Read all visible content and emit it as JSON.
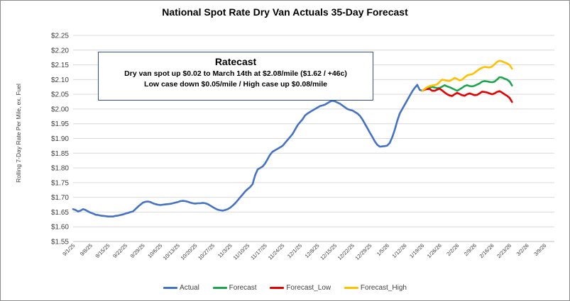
{
  "chart_data": {
    "type": "line",
    "title": "National Spot Rate Dry Van Actuals 35-Day Forecast",
    "ylabel": "Rolling 7-Day Rate Per Mile, ex. Fuel",
    "xlabel": "",
    "ylim": [
      1.55,
      2.25
    ],
    "yticks": [
      "$1.55",
      "$1.60",
      "$1.65",
      "$1.70",
      "$1.75",
      "$1.80",
      "$1.85",
      "$1.90",
      "$1.95",
      "$2.00",
      "$2.05",
      "$2.10",
      "$2.15",
      "$2.20",
      "$2.25"
    ],
    "yvalues": [
      1.55,
      1.6,
      1.65,
      1.7,
      1.75,
      1.8,
      1.85,
      1.9,
      1.95,
      2.0,
      2.05,
      2.1,
      2.15,
      2.2,
      2.25
    ],
    "xdomain": [
      0,
      193
    ],
    "xticks": [
      {
        "label": "9/1/25",
        "day": 0
      },
      {
        "label": "9/8/25",
        "day": 7
      },
      {
        "label": "9/15/25",
        "day": 14
      },
      {
        "label": "9/22/25",
        "day": 21
      },
      {
        "label": "9/29/25",
        "day": 28
      },
      {
        "label": "10/6/25",
        "day": 35
      },
      {
        "label": "10/13/25",
        "day": 42
      },
      {
        "label": "10/20/25",
        "day": 49
      },
      {
        "label": "10/27/25",
        "day": 56
      },
      {
        "label": "11/3/25",
        "day": 63
      },
      {
        "label": "11/10/25",
        "day": 70
      },
      {
        "label": "11/17/25",
        "day": 77
      },
      {
        "label": "11/24/25",
        "day": 84
      },
      {
        "label": "12/1/25",
        "day": 91
      },
      {
        "label": "12/8/25",
        "day": 98
      },
      {
        "label": "12/15/25",
        "day": 105
      },
      {
        "label": "12/22/25",
        "day": 112
      },
      {
        "label": "12/29/25",
        "day": 119
      },
      {
        "label": "1/5/26",
        "day": 126
      },
      {
        "label": "1/12/26",
        "day": 133
      },
      {
        "label": "1/19/26",
        "day": 140
      },
      {
        "label": "1/26/26",
        "day": 147
      },
      {
        "label": "2/2/26",
        "day": 154
      },
      {
        "label": "2/9/26",
        "day": 161
      },
      {
        "label": "2/16/26",
        "day": 168
      },
      {
        "label": "2/23/26",
        "day": 175
      },
      {
        "label": "3/2/26",
        "day": 182
      },
      {
        "label": "3/9/26",
        "day": 189
      }
    ],
    "series": [
      {
        "name": "Actual",
        "color": "#4472c4",
        "points": [
          [
            0,
            1.66
          ],
          [
            1,
            1.657
          ],
          [
            2,
            1.652
          ],
          [
            3,
            1.655
          ],
          [
            4,
            1.66
          ],
          [
            5,
            1.657
          ],
          [
            6,
            1.652
          ],
          [
            7,
            1.648
          ],
          [
            8,
            1.645
          ],
          [
            9,
            1.641
          ],
          [
            10,
            1.64
          ],
          [
            11,
            1.638
          ],
          [
            12,
            1.637
          ],
          [
            13,
            1.636
          ],
          [
            14,
            1.635
          ],
          [
            15,
            1.635
          ],
          [
            16,
            1.635
          ],
          [
            17,
            1.637
          ],
          [
            18,
            1.638
          ],
          [
            19,
            1.64
          ],
          [
            20,
            1.642
          ],
          [
            21,
            1.645
          ],
          [
            22,
            1.647
          ],
          [
            23,
            1.65
          ],
          [
            24,
            1.652
          ],
          [
            25,
            1.66
          ],
          [
            26,
            1.668
          ],
          [
            27,
            1.675
          ],
          [
            28,
            1.682
          ],
          [
            29,
            1.685
          ],
          [
            30,
            1.686
          ],
          [
            31,
            1.684
          ],
          [
            32,
            1.68
          ],
          [
            33,
            1.677
          ],
          [
            34,
            1.675
          ],
          [
            35,
            1.674
          ],
          [
            36,
            1.675
          ],
          [
            37,
            1.676
          ],
          [
            38,
            1.677
          ],
          [
            39,
            1.678
          ],
          [
            40,
            1.68
          ],
          [
            41,
            1.682
          ],
          [
            42,
            1.684
          ],
          [
            43,
            1.687
          ],
          [
            44,
            1.688
          ],
          [
            45,
            1.687
          ],
          [
            46,
            1.685
          ],
          [
            47,
            1.682
          ],
          [
            48,
            1.68
          ],
          [
            49,
            1.679
          ],
          [
            50,
            1.68
          ],
          [
            51,
            1.68
          ],
          [
            52,
            1.681
          ],
          [
            53,
            1.68
          ],
          [
            54,
            1.677
          ],
          [
            55,
            1.672
          ],
          [
            56,
            1.667
          ],
          [
            57,
            1.662
          ],
          [
            58,
            1.658
          ],
          [
            59,
            1.656
          ],
          [
            60,
            1.655
          ],
          [
            61,
            1.657
          ],
          [
            62,
            1.66
          ],
          [
            63,
            1.665
          ],
          [
            64,
            1.672
          ],
          [
            65,
            1.68
          ],
          [
            66,
            1.69
          ],
          [
            67,
            1.7
          ],
          [
            68,
            1.71
          ],
          [
            69,
            1.72
          ],
          [
            70,
            1.728
          ],
          [
            71,
            1.735
          ],
          [
            72,
            1.745
          ],
          [
            73,
            1.775
          ],
          [
            74,
            1.795
          ],
          [
            75,
            1.8
          ],
          [
            76,
            1.805
          ],
          [
            77,
            1.815
          ],
          [
            78,
            1.83
          ],
          [
            79,
            1.845
          ],
          [
            80,
            1.855
          ],
          [
            81,
            1.86
          ],
          [
            82,
            1.865
          ],
          [
            83,
            1.87
          ],
          [
            84,
            1.875
          ],
          [
            85,
            1.885
          ],
          [
            86,
            1.895
          ],
          [
            87,
            1.905
          ],
          [
            88,
            1.915
          ],
          [
            89,
            1.93
          ],
          [
            90,
            1.945
          ],
          [
            91,
            1.955
          ],
          [
            92,
            1.965
          ],
          [
            93,
            1.978
          ],
          [
            94,
            1.985
          ],
          [
            95,
            1.99
          ],
          [
            96,
            1.995
          ],
          [
            97,
            2.0
          ],
          [
            98,
            2.005
          ],
          [
            99,
            2.01
          ],
          [
            100,
            2.012
          ],
          [
            101,
            2.015
          ],
          [
            102,
            2.02
          ],
          [
            103,
            2.025
          ],
          [
            104,
            2.028
          ],
          [
            105,
            2.026
          ],
          [
            106,
            2.022
          ],
          [
            107,
            2.018
          ],
          [
            108,
            2.012
          ],
          [
            109,
            2.006
          ],
          [
            110,
            2.0
          ],
          [
            111,
            1.997
          ],
          [
            112,
            1.995
          ],
          [
            113,
            1.99
          ],
          [
            114,
            1.985
          ],
          [
            115,
            1.977
          ],
          [
            116,
            1.965
          ],
          [
            117,
            1.95
          ],
          [
            118,
            1.935
          ],
          [
            119,
            1.92
          ],
          [
            120,
            1.905
          ],
          [
            121,
            1.89
          ],
          [
            122,
            1.878
          ],
          [
            123,
            1.872
          ],
          [
            124,
            1.873
          ],
          [
            125,
            1.874
          ],
          [
            126,
            1.876
          ],
          [
            127,
            1.885
          ],
          [
            128,
            1.905
          ],
          [
            129,
            1.93
          ],
          [
            130,
            1.96
          ],
          [
            131,
            1.985
          ],
          [
            132,
            2.0
          ],
          [
            133,
            2.015
          ],
          [
            134,
            2.03
          ],
          [
            135,
            2.045
          ],
          [
            136,
            2.06
          ],
          [
            137,
            2.072
          ],
          [
            138,
            2.082
          ],
          [
            139,
            2.065
          ],
          [
            140,
            2.062
          ]
        ]
      },
      {
        "name": "Forecast",
        "color": "#1ca64b",
        "points": [
          [
            140,
            2.062
          ],
          [
            141,
            2.066
          ],
          [
            142,
            2.07
          ],
          [
            143,
            2.073
          ],
          [
            144,
            2.075
          ],
          [
            145,
            2.073
          ],
          [
            146,
            2.071
          ],
          [
            147,
            2.072
          ],
          [
            148,
            2.076
          ],
          [
            149,
            2.081
          ],
          [
            150,
            2.077
          ],
          [
            151,
            2.074
          ],
          [
            152,
            2.07
          ],
          [
            153,
            2.066
          ],
          [
            154,
            2.062
          ],
          [
            155,
            2.067
          ],
          [
            156,
            2.072
          ],
          [
            157,
            2.078
          ],
          [
            158,
            2.081
          ],
          [
            159,
            2.078
          ],
          [
            160,
            2.077
          ],
          [
            161,
            2.079
          ],
          [
            162,
            2.083
          ],
          [
            163,
            2.087
          ],
          [
            164,
            2.093
          ],
          [
            165,
            2.095
          ],
          [
            166,
            2.094
          ],
          [
            167,
            2.092
          ],
          [
            168,
            2.091
          ],
          [
            169,
            2.093
          ],
          [
            170,
            2.1
          ],
          [
            171,
            2.108
          ],
          [
            172,
            2.107
          ],
          [
            173,
            2.103
          ],
          [
            174,
            2.1
          ],
          [
            175,
            2.094
          ],
          [
            176,
            2.08
          ]
        ]
      },
      {
        "name": "Forecast_Low",
        "color": "#e60000",
        "points": [
          [
            140,
            2.062
          ],
          [
            141,
            2.066
          ],
          [
            142,
            2.068
          ],
          [
            143,
            2.068
          ],
          [
            144,
            2.062
          ],
          [
            145,
            2.062
          ],
          [
            146,
            2.066
          ],
          [
            147,
            2.069
          ],
          [
            148,
            2.063
          ],
          [
            149,
            2.056
          ],
          [
            150,
            2.05
          ],
          [
            151,
            2.046
          ],
          [
            152,
            2.044
          ],
          [
            153,
            2.05
          ],
          [
            154,
            2.055
          ],
          [
            155,
            2.051
          ],
          [
            156,
            2.047
          ],
          [
            157,
            2.045
          ],
          [
            158,
            2.05
          ],
          [
            159,
            2.053
          ],
          [
            160,
            2.05
          ],
          [
            161,
            2.047
          ],
          [
            162,
            2.048
          ],
          [
            163,
            2.053
          ],
          [
            164,
            2.059
          ],
          [
            165,
            2.058
          ],
          [
            166,
            2.056
          ],
          [
            167,
            2.053
          ],
          [
            168,
            2.05
          ],
          [
            169,
            2.053
          ],
          [
            170,
            2.058
          ],
          [
            171,
            2.061
          ],
          [
            172,
            2.056
          ],
          [
            173,
            2.05
          ],
          [
            174,
            2.045
          ],
          [
            175,
            2.038
          ],
          [
            176,
            2.024
          ]
        ]
      },
      {
        "name": "Forecast_High",
        "color": "#ffc000",
        "points": [
          [
            140,
            2.062
          ],
          [
            141,
            2.068
          ],
          [
            142,
            2.074
          ],
          [
            143,
            2.078
          ],
          [
            144,
            2.08
          ],
          [
            145,
            2.081
          ],
          [
            146,
            2.084
          ],
          [
            147,
            2.092
          ],
          [
            148,
            2.1
          ],
          [
            149,
            2.098
          ],
          [
            150,
            2.096
          ],
          [
            151,
            2.095
          ],
          [
            152,
            2.1
          ],
          [
            153,
            2.106
          ],
          [
            154,
            2.102
          ],
          [
            155,
            2.097
          ],
          [
            156,
            2.1
          ],
          [
            157,
            2.107
          ],
          [
            158,
            2.114
          ],
          [
            159,
            2.117
          ],
          [
            160,
            2.118
          ],
          [
            161,
            2.123
          ],
          [
            162,
            2.13
          ],
          [
            163,
            2.136
          ],
          [
            164,
            2.14
          ],
          [
            165,
            2.143
          ],
          [
            166,
            2.142
          ],
          [
            167,
            2.141
          ],
          [
            168,
            2.144
          ],
          [
            169,
            2.152
          ],
          [
            170,
            2.16
          ],
          [
            171,
            2.164
          ],
          [
            172,
            2.162
          ],
          [
            173,
            2.158
          ],
          [
            174,
            2.155
          ],
          [
            175,
            2.15
          ],
          [
            176,
            2.137
          ]
        ]
      }
    ]
  },
  "annotation": {
    "title": "Ratecast",
    "line1": "Dry van spot up $0.02 to March 14th at $2.08/mile ($1.62 / +46c)",
    "line2": "Low case down $0.05/mile / High case up $0.08/mile"
  },
  "legend": [
    {
      "label": "Actual",
      "color": "#4472c4"
    },
    {
      "label": "Forecast",
      "color": "#1ca64b"
    },
    {
      "label": "Forecast_Low",
      "color": "#e60000"
    },
    {
      "label": "Forecast_High",
      "color": "#ffc000"
    }
  ]
}
